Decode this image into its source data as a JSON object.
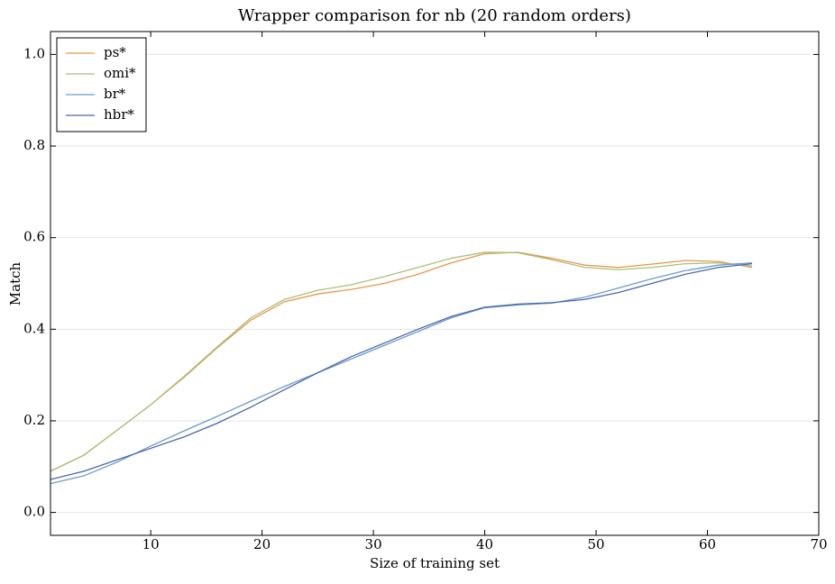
{
  "chart_data": {
    "type": "line",
    "title": "Wrapper comparison for nb (20 random orders)",
    "x_label": "Size of training set",
    "y_label": "Match",
    "x": [
      1,
      4,
      7,
      10,
      13,
      16,
      19,
      22,
      25,
      28,
      31,
      34,
      37,
      40,
      43,
      46,
      49,
      52,
      55,
      58,
      61,
      64
    ],
    "series": [
      {
        "name": "ps*",
        "color": "#e8964a",
        "values": [
          0.09,
          0.125,
          0.18,
          0.235,
          0.295,
          0.36,
          0.42,
          0.46,
          0.477,
          0.487,
          0.5,
          0.52,
          0.545,
          0.565,
          0.568,
          0.555,
          0.54,
          0.535,
          0.542,
          0.55,
          0.548,
          0.535
        ]
      },
      {
        "name": "omi*",
        "color": "#a8c07a",
        "values": [
          0.09,
          0.125,
          0.18,
          0.235,
          0.297,
          0.362,
          0.425,
          0.465,
          0.485,
          0.497,
          0.515,
          0.535,
          0.555,
          0.568,
          0.567,
          0.552,
          0.535,
          0.53,
          0.535,
          0.543,
          0.545,
          0.538
        ]
      },
      {
        "name": "br*",
        "color": "#6a9cc8",
        "values": [
          0.063,
          0.08,
          0.11,
          0.145,
          0.178,
          0.21,
          0.243,
          0.275,
          0.305,
          0.335,
          0.365,
          0.395,
          0.425,
          0.447,
          0.453,
          0.457,
          0.47,
          0.49,
          0.51,
          0.528,
          0.54,
          0.545
        ]
      },
      {
        "name": "hbr*",
        "color": "#4a66b0",
        "values": [
          0.072,
          0.09,
          0.115,
          0.14,
          0.165,
          0.195,
          0.23,
          0.268,
          0.305,
          0.34,
          0.37,
          0.4,
          0.428,
          0.448,
          0.455,
          0.458,
          0.465,
          0.48,
          0.5,
          0.52,
          0.535,
          0.543
        ]
      }
    ],
    "xlim": [
      1,
      70
    ],
    "xticks": [
      10,
      20,
      30,
      40,
      50,
      60,
      70
    ],
    "ylim": [
      -0.05,
      1.05
    ],
    "yticks": [
      {
        "value": 0,
        "label": "0.0"
      },
      {
        "value": 0.2,
        "label": "0.2"
      },
      {
        "value": 0.4,
        "label": "0.4"
      },
      {
        "value": 0.6,
        "label": "0.6"
      },
      {
        "value": 0.8,
        "label": "0.8"
      },
      {
        "value": 1,
        "label": "1.0"
      }
    ],
    "grid": true,
    "legend": "upper left"
  }
}
